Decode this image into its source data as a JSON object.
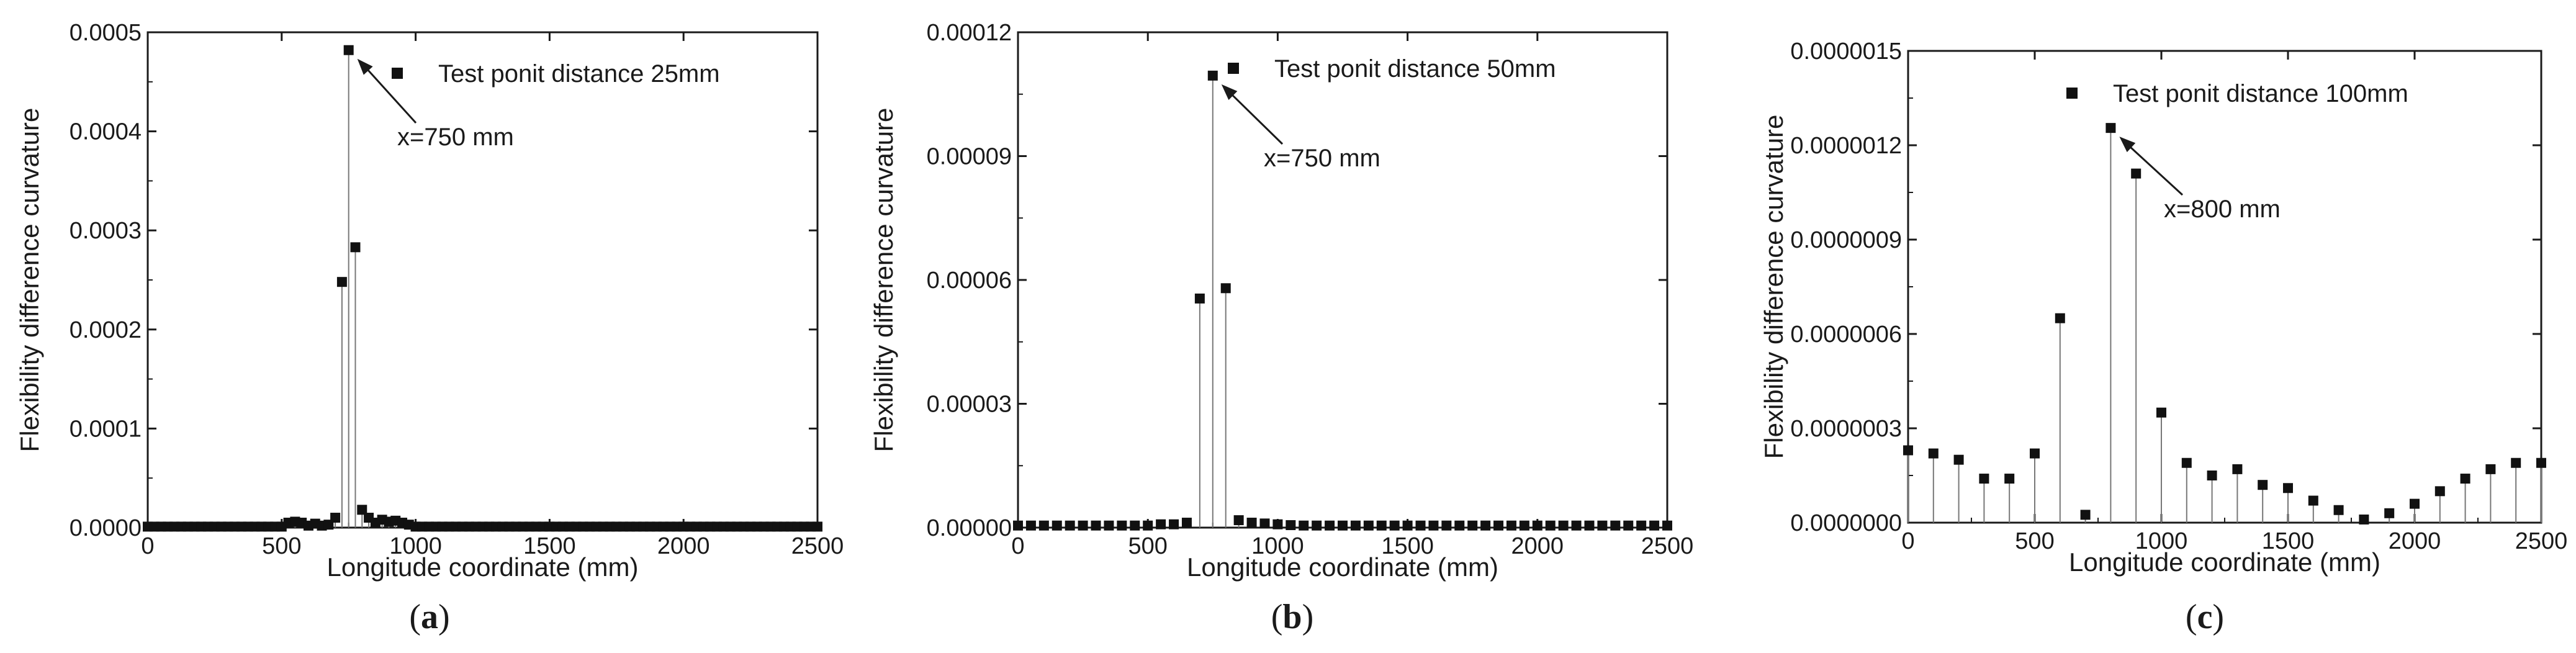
{
  "chart_data": [
    {
      "type": "scatter",
      "panel_label": "a",
      "xlabel": "Longitude coordinate (mm)",
      "ylabel": "Flexibility difference curvature",
      "xlim": [
        0,
        2500
      ],
      "ylim": [
        0,
        0.0005
      ],
      "x_ticks": [
        0,
        500,
        1000,
        1500,
        2000,
        2500
      ],
      "y_ticks": [
        0.0,
        0.0001,
        0.0002,
        0.0003,
        0.0004,
        0.0005
      ],
      "x_tick_labels": [
        "0",
        "500",
        "1000",
        "1500",
        "2000",
        "2500"
      ],
      "y_tick_labels": [
        "0.0000",
        "0.0001",
        "0.0002",
        "0.0003",
        "0.0004",
        "0.0005"
      ],
      "legend": "Test ponit distance 25mm",
      "annotation": {
        "text": "x=750 mm",
        "x": 750,
        "y": 0.000482
      },
      "series": [
        {
          "name": "Test ponit distance 25mm",
          "x": [
            0,
            25,
            50,
            75,
            100,
            125,
            150,
            175,
            200,
            225,
            250,
            275,
            300,
            325,
            350,
            375,
            400,
            425,
            450,
            475,
            500,
            525,
            550,
            575,
            600,
            625,
            650,
            675,
            700,
            725,
            750,
            775,
            800,
            825,
            850,
            875,
            900,
            925,
            950,
            975,
            1000,
            1025,
            1050,
            1075,
            1100,
            1125,
            1150,
            1175,
            1200,
            1225,
            1250,
            1275,
            1300,
            1325,
            1350,
            1375,
            1400,
            1425,
            1450,
            1475,
            1500,
            1525,
            1550,
            1575,
            1600,
            1625,
            1650,
            1675,
            1700,
            1725,
            1750,
            1775,
            1800,
            1825,
            1850,
            1875,
            1900,
            1925,
            1950,
            1975,
            2000,
            2025,
            2050,
            2075,
            2100,
            2125,
            2150,
            2175,
            2200,
            2225,
            2250,
            2275,
            2300,
            2325,
            2350,
            2375,
            2400,
            2425,
            2450,
            2475,
            2500
          ],
          "y": [
            1e-06,
            1e-06,
            1e-06,
            1e-06,
            1e-06,
            1e-06,
            1e-06,
            1e-06,
            1e-06,
            1e-06,
            1e-06,
            1e-06,
            1e-06,
            1e-06,
            1e-06,
            1e-06,
            1e-06,
            1e-06,
            1e-06,
            1e-06,
            1e-06,
            5e-06,
            6e-06,
            5e-06,
            2e-06,
            4e-06,
            2e-06,
            3e-06,
            1e-05,
            0.000248,
            0.000482,
            0.000283,
            1.8e-05,
            1e-05,
            5e-06,
            8e-06,
            6e-06,
            7e-06,
            5e-06,
            3e-06,
            1e-06,
            1e-06,
            1e-06,
            1e-06,
            1e-06,
            1e-06,
            1e-06,
            1e-06,
            1e-06,
            1e-06,
            1e-06,
            1e-06,
            1e-06,
            1e-06,
            1e-06,
            1e-06,
            1e-06,
            1e-06,
            1e-06,
            1e-06,
            1e-06,
            1e-06,
            1e-06,
            1e-06,
            1e-06,
            1e-06,
            1e-06,
            1e-06,
            1e-06,
            1e-06,
            1e-06,
            1e-06,
            1e-06,
            1e-06,
            1e-06,
            1e-06,
            1e-06,
            1e-06,
            1e-06,
            1e-06,
            1e-06,
            1e-06,
            1e-06,
            1e-06,
            1e-06,
            1e-06,
            1e-06,
            1e-06,
            1e-06,
            1e-06,
            1e-06,
            1e-06,
            1e-06,
            1e-06,
            1e-06,
            1e-06,
            1e-06,
            1e-06,
            1e-06,
            1e-06,
            1e-06
          ]
        }
      ]
    },
    {
      "type": "scatter",
      "panel_label": "b",
      "xlabel": "Longitude coordinate (mm)",
      "ylabel": "Flexibility difference curvature",
      "xlim": [
        0,
        2500
      ],
      "ylim": [
        0,
        0.00012
      ],
      "x_ticks": [
        0,
        500,
        1000,
        1500,
        2000,
        2500
      ],
      "y_ticks": [
        0.0,
        3e-05,
        6e-05,
        9e-05,
        0.00012
      ],
      "x_tick_labels": [
        "0",
        "500",
        "1000",
        "1500",
        "2000",
        "2500"
      ],
      "y_tick_labels": [
        "0.00000",
        "0.00003",
        "0.00006",
        "0.00009",
        "0.00012"
      ],
      "legend": "Test ponit distance 50mm",
      "annotation": {
        "text": "x=750 mm",
        "x": 750,
        "y": 0.0001095
      },
      "series": [
        {
          "name": "Test ponit distance 50mm",
          "x": [
            0,
            50,
            100,
            150,
            200,
            250,
            300,
            350,
            400,
            450,
            500,
            550,
            600,
            650,
            700,
            750,
            800,
            850,
            900,
            950,
            1000,
            1050,
            1100,
            1150,
            1200,
            1250,
            1300,
            1350,
            1400,
            1450,
            1500,
            1550,
            1600,
            1650,
            1700,
            1750,
            1800,
            1850,
            1900,
            1950,
            2000,
            2050,
            2100,
            2150,
            2200,
            2250,
            2300,
            2350,
            2400,
            2450,
            2500
          ],
          "y": [
            5e-07,
            5e-07,
            5e-07,
            5e-07,
            5e-07,
            5e-07,
            5e-07,
            5e-07,
            5e-07,
            5e-07,
            5e-07,
            8e-07,
            8e-07,
            1.2e-06,
            5.55e-05,
            0.0001095,
            5.8e-05,
            1.8e-06,
            1.2e-06,
            1e-06,
            8e-07,
            6e-07,
            5e-07,
            5e-07,
            5e-07,
            5e-07,
            5e-07,
            5e-07,
            5e-07,
            5e-07,
            5e-07,
            5e-07,
            5e-07,
            5e-07,
            5e-07,
            5e-07,
            5e-07,
            5e-07,
            5e-07,
            5e-07,
            5e-07,
            5e-07,
            5e-07,
            5e-07,
            5e-07,
            5e-07,
            5e-07,
            5e-07,
            5e-07,
            5e-07,
            5e-07
          ]
        }
      ]
    },
    {
      "type": "scatter",
      "panel_label": "c",
      "xlabel": "Longitude coordinate (mm)",
      "ylabel": "Flexibility difference curvature",
      "xlim": [
        0,
        2500
      ],
      "ylim": [
        0,
        1.5e-06
      ],
      "x_ticks": [
        0,
        500,
        1000,
        1500,
        2000,
        2500
      ],
      "y_ticks": [
        0.0,
        3e-07,
        6e-07,
        9e-07,
        1.2e-06,
        1.5e-06
      ],
      "x_tick_labels": [
        "0",
        "500",
        "1000",
        "1500",
        "2000",
        "2500"
      ],
      "y_tick_labels": [
        "0.0000000",
        "0.0000003",
        "0.0000006",
        "0.0000009",
        "0.0000012",
        "0.0000015"
      ],
      "legend": "Test ponit distance 100mm",
      "annotation": {
        "text": "x=800 mm",
        "x": 800,
        "y": 1.255e-06
      },
      "series": [
        {
          "name": "Test ponit distance 100mm",
          "x": [
            0,
            100,
            200,
            300,
            400,
            500,
            600,
            700,
            800,
            900,
            1000,
            1100,
            1200,
            1300,
            1400,
            1500,
            1600,
            1700,
            1800,
            1900,
            2000,
            2100,
            2200,
            2300,
            2400,
            2500
          ],
          "y": [
            2.3e-07,
            2.2e-07,
            2e-07,
            1.4e-07,
            1.4e-07,
            2.2e-07,
            6.5e-07,
            2.5e-08,
            1.255e-06,
            1.11e-06,
            3.5e-07,
            1.9e-07,
            1.5e-07,
            1.7e-07,
            1.2e-07,
            1.1e-07,
            7e-08,
            4e-08,
            1e-08,
            3e-08,
            6e-08,
            1e-07,
            1.4e-07,
            1.7e-07,
            1.9e-07,
            1.9e-07
          ]
        }
      ]
    }
  ]
}
